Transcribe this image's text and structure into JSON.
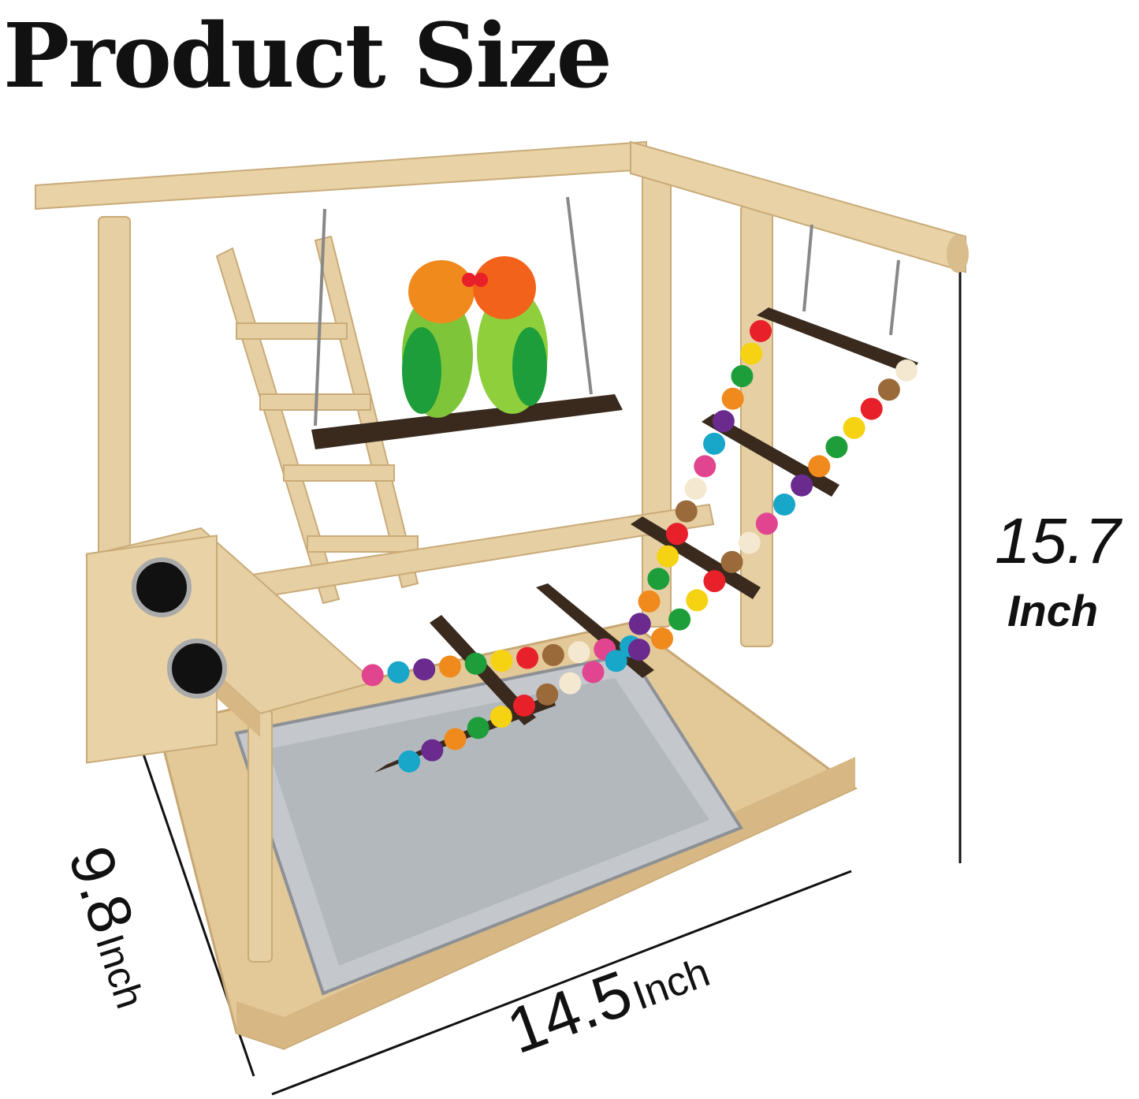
{
  "title": "Product Size",
  "dimensions": {
    "height": {
      "value": "15.7",
      "unit": "Inch"
    },
    "depth": {
      "value": "9.8",
      "unit": "Inch"
    },
    "width": {
      "value": "14.5",
      "unit": "Inch"
    }
  },
  "colors": {
    "wood": "#e6cfa3",
    "wood_shadow": "#c9ab78",
    "dark_branch": "#3a2a1e",
    "tray": "#b8bcc0",
    "line": "#111111"
  },
  "bead_colors": [
    "#e8202a",
    "#f5d312",
    "#1d9e3a",
    "#f08a1c",
    "#6a2a8e",
    "#18a6c9",
    "#e2458f",
    "#f4e9d0",
    "#9b6a3a"
  ]
}
